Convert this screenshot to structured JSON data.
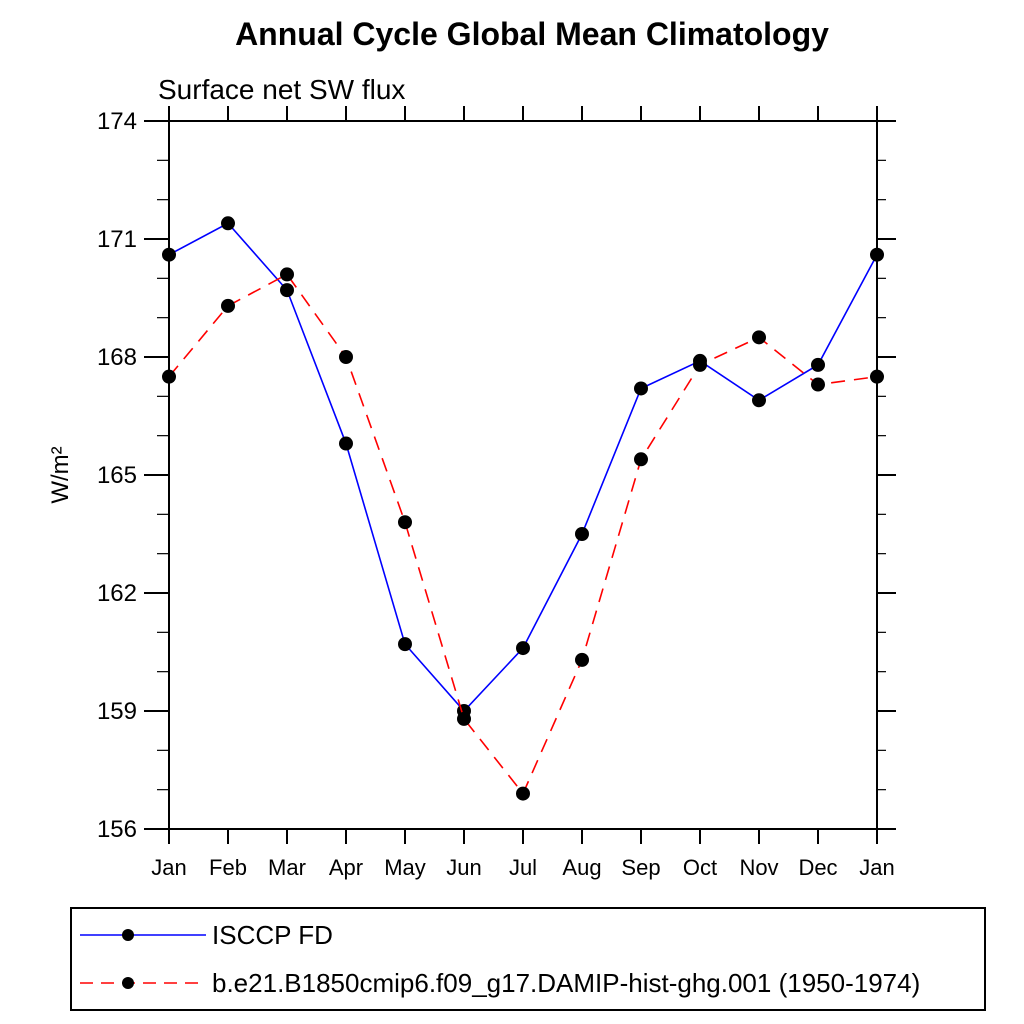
{
  "title": "Annual Cycle Global Mean Climatology",
  "subtitle": "Surface net SW flux",
  "chart_data": {
    "type": "line",
    "title": "Annual Cycle Global Mean Climatology",
    "subtitle": "Surface net SW flux",
    "xlabel": "",
    "ylabel": "W/m²",
    "ylim": [
      156,
      174
    ],
    "ytick_major": [
      156,
      159,
      162,
      165,
      168,
      171,
      174
    ],
    "ytick_minor_step": 1,
    "x_categories": [
      "Jan",
      "Feb",
      "Mar",
      "Apr",
      "May",
      "Jun",
      "Jul",
      "Aug",
      "Sep",
      "Oct",
      "Nov",
      "Dec",
      "Jan"
    ],
    "grid": false,
    "legend_position": "bottom-left-box",
    "axis_color": "#000000",
    "background_color": "#ffffff",
    "series": [
      {
        "name": "ISCCP FD",
        "color": "#0000ff",
        "line_style": "solid",
        "marker": "circle",
        "marker_color": "#000000",
        "values": [
          170.6,
          171.4,
          169.7,
          165.8,
          160.7,
          159.0,
          160.6,
          163.5,
          167.2,
          167.9,
          166.9,
          167.8,
          170.6
        ]
      },
      {
        "name": "b.e21.B1850cmip6.f09_g17.DAMIP-hist-ghg.001 (1950-1974)",
        "color": "#ff0000",
        "line_style": "dashed",
        "marker": "circle",
        "marker_color": "#000000",
        "values": [
          167.5,
          169.3,
          170.1,
          168.0,
          163.8,
          158.8,
          156.9,
          160.3,
          165.4,
          167.8,
          168.5,
          167.3,
          167.5
        ]
      }
    ]
  }
}
